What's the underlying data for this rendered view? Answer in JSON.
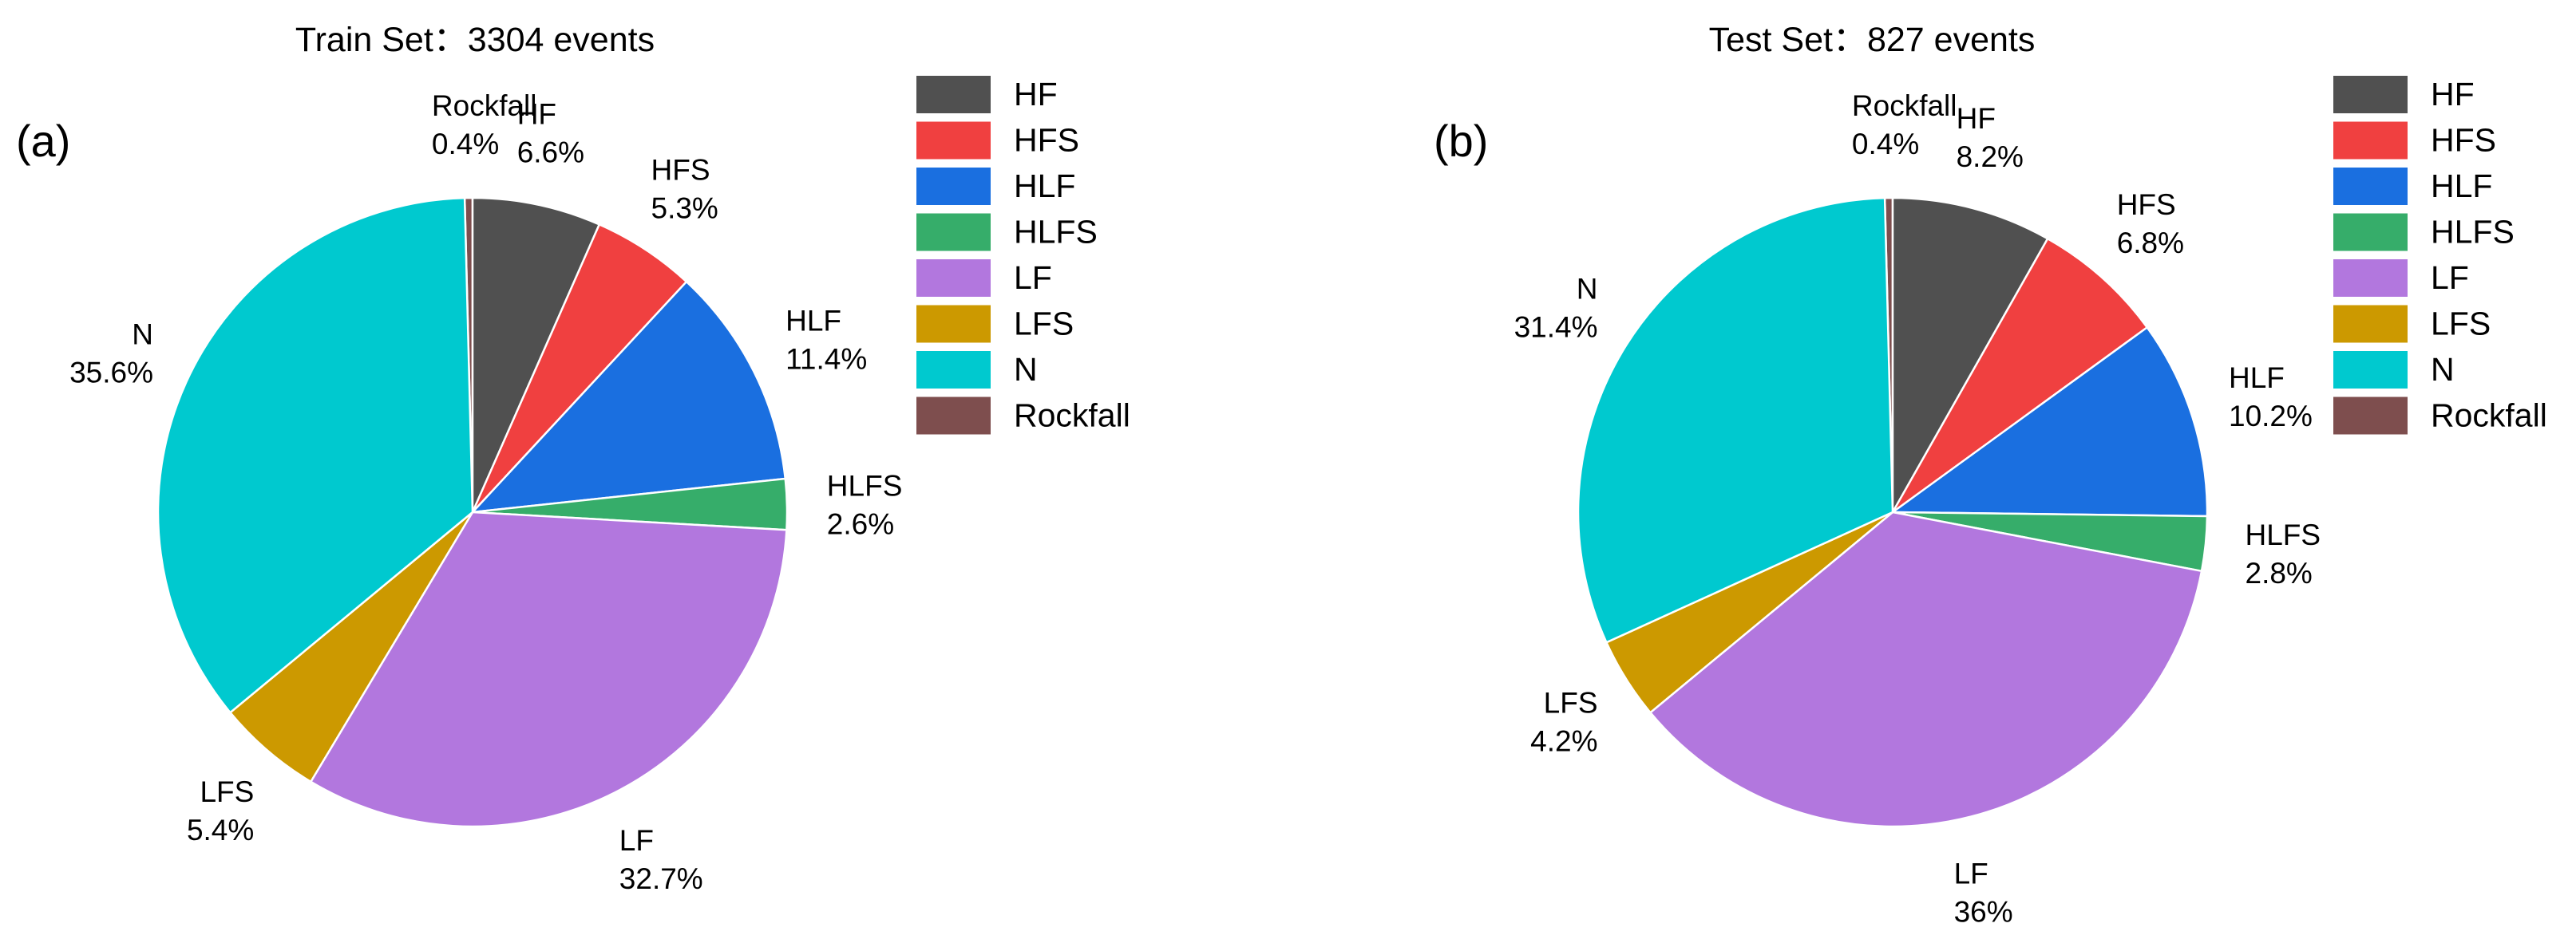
{
  "colors": {
    "HF": "#505050",
    "HFS": "#f04040",
    "HLF": "#1a6fe0",
    "HLFS": "#36ad6a",
    "LF": "#b277de",
    "LFS": "#cc9900",
    "N": "#00c9cf",
    "Rockfall": "#7e4e4e"
  },
  "chart_data": [
    {
      "type": "pie",
      "panel_label": "(a)",
      "title": "Train Set：3304 events",
      "categories": [
        "HF",
        "HFS",
        "HLF",
        "HLFS",
        "LF",
        "LFS",
        "N",
        "Rockfall"
      ],
      "values": [
        6.6,
        5.3,
        11.4,
        2.6,
        32.7,
        5.4,
        35.6,
        0.4
      ],
      "labels": [
        "6.6%",
        "5.3%",
        "11.4%",
        "2.6%",
        "32.7%",
        "5.4%",
        "35.6%",
        "0.4%"
      ],
      "legend": [
        "HF",
        "HFS",
        "HLF",
        "HLFS",
        "LF",
        "LFS",
        "N",
        "Rockfall"
      ],
      "legend_position": "right"
    },
    {
      "type": "pie",
      "panel_label": "(b)",
      "title": "Test Set：827 events",
      "categories": [
        "HF",
        "HFS",
        "HLF",
        "HLFS",
        "LF",
        "LFS",
        "N",
        "Rockfall"
      ],
      "values": [
        8.2,
        6.8,
        10.2,
        2.8,
        36,
        4.2,
        31.4,
        0.4
      ],
      "labels": [
        "8.2%",
        "6.8%",
        "10.2%",
        "2.8%",
        "36%",
        "4.2%",
        "31.4%",
        "0.4%"
      ],
      "legend": [
        "HF",
        "HFS",
        "HLF",
        "HLFS",
        "LF",
        "LFS",
        "N",
        "Rockfall"
      ],
      "legend_position": "right"
    }
  ]
}
